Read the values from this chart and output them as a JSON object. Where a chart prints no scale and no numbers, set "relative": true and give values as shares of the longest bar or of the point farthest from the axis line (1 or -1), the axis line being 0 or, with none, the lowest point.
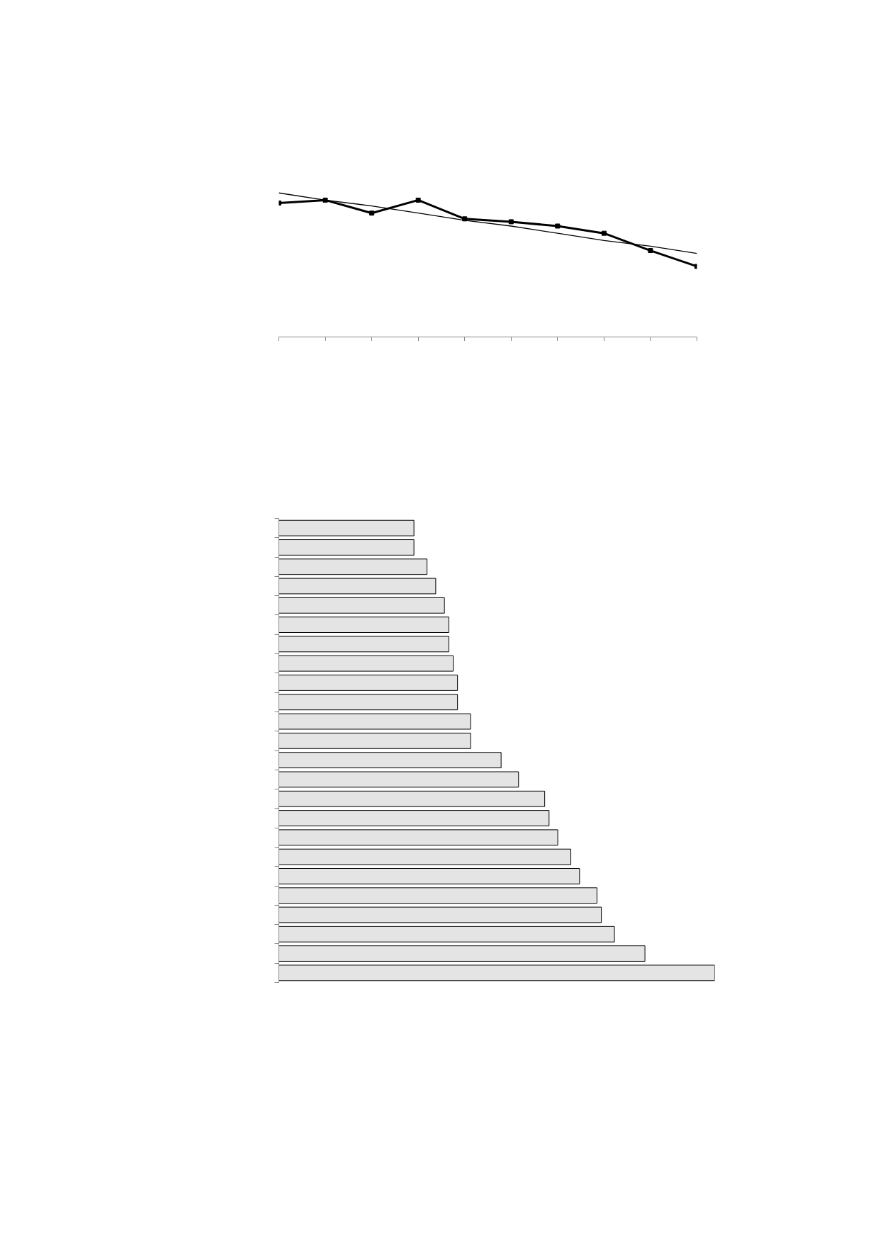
{
  "chart_data": [
    {
      "type": "line",
      "relative": true,
      "categories": [
        null,
        null,
        null,
        null,
        null,
        null,
        null,
        null,
        null,
        null
      ],
      "marker": "square",
      "grid": false,
      "series": [
        {
          "color": "#000000",
          "values": [
            0.93,
            0.95,
            0.86,
            0.95,
            0.82,
            0.8,
            0.77,
            0.72,
            0.6,
            0.49
          ]
        },
        {
          "type": "line",
          "color": "#000000",
          "values": [
            1,
            0.95,
            0.91,
            0.86,
            0.81,
            0.77,
            0.72,
            0.67,
            0.63,
            0.58
          ],
          "marker": "none"
        }
      ]
    },
    {
      "type": "bar",
      "orientation": "horizontal",
      "relative": true,
      "grid": false,
      "categories": [
        null,
        null,
        null,
        null,
        null,
        null,
        null,
        null,
        null,
        null,
        null,
        null,
        null,
        null,
        null,
        null,
        null,
        null,
        null,
        null,
        null,
        null,
        null,
        null
      ],
      "color": "#e4e4e4",
      "values": [
        0.31,
        0.31,
        0.34,
        0.36,
        0.38,
        0.39,
        0.39,
        0.4,
        0.41,
        0.41,
        0.44,
        0.44,
        0.51,
        0.55,
        0.61,
        0.62,
        0.64,
        0.67,
        0.69,
        0.73,
        0.74,
        0.77,
        0.84,
        1
      ]
    }
  ]
}
